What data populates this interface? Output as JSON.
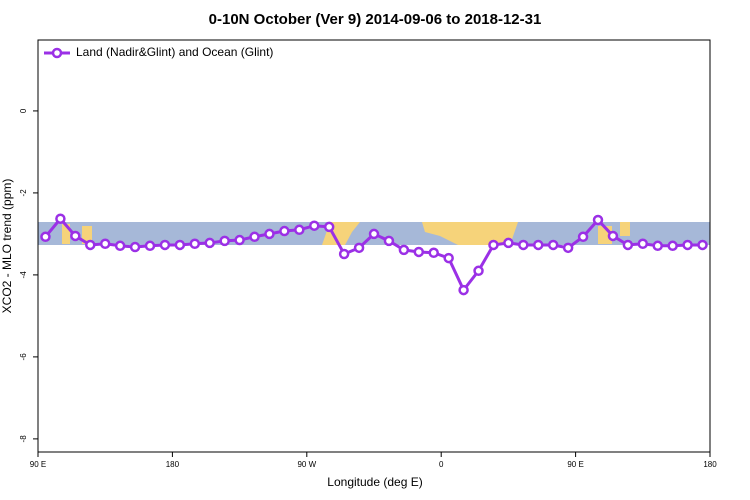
{
  "chart_data": {
    "type": "line",
    "title": "0-10N October (Ver 9)   2014-09-06 to 2018-12-31",
    "x_label": "Longitude (deg E)",
    "y_label": "XCO2 - MLO trend (ppm)",
    "x": [
      95,
      105,
      115,
      125,
      135,
      145,
      155,
      165,
      175,
      185,
      195,
      205,
      215,
      225,
      235,
      245,
      255,
      265,
      275,
      285,
      295,
      305,
      315,
      325,
      335,
      345,
      355,
      365,
      375,
      385,
      395,
      405,
      415,
      425,
      435,
      445,
      455,
      465,
      475,
      485,
      495,
      505,
      515,
      525,
      535
    ],
    "series": [
      {
        "name": "Land (Nadir&Glint) and Ocean (Glint)",
        "color": "#9b30e6",
        "values": [
          -3.07,
          -2.63,
          -3.05,
          -3.27,
          -3.24,
          -3.29,
          -3.32,
          -3.29,
          -3.27,
          -3.27,
          -3.24,
          -3.22,
          -3.17,
          -3.15,
          -3.07,
          -3.0,
          -2.93,
          -2.9,
          -2.8,
          -2.83,
          -3.49,
          -3.34,
          -3.0,
          -3.17,
          -3.39,
          -3.44,
          -3.46,
          -3.59,
          -4.37,
          -3.9,
          -3.27,
          -3.22,
          -3.27,
          -3.27,
          -3.27,
          -3.34,
          -3.07,
          -2.66,
          -3.05,
          -3.27,
          -3.24,
          -3.29,
          -3.29,
          -3.27,
          -3.27
        ]
      }
    ],
    "xlim": [
      90,
      540
    ],
    "xticks": [
      {
        "value": 90,
        "label": "90 E"
      },
      {
        "value": 180,
        "label": "180"
      },
      {
        "value": 270,
        "label": "90 W"
      },
      {
        "value": 360,
        "label": "0"
      },
      {
        "value": 450,
        "label": "90 E"
      },
      {
        "value": 540,
        "label": "180"
      }
    ],
    "ylim": [
      -8.32,
      1.73
    ],
    "yticks": [
      0,
      -2,
      -4,
      -6,
      -8
    ],
    "legend": "top-left"
  }
}
